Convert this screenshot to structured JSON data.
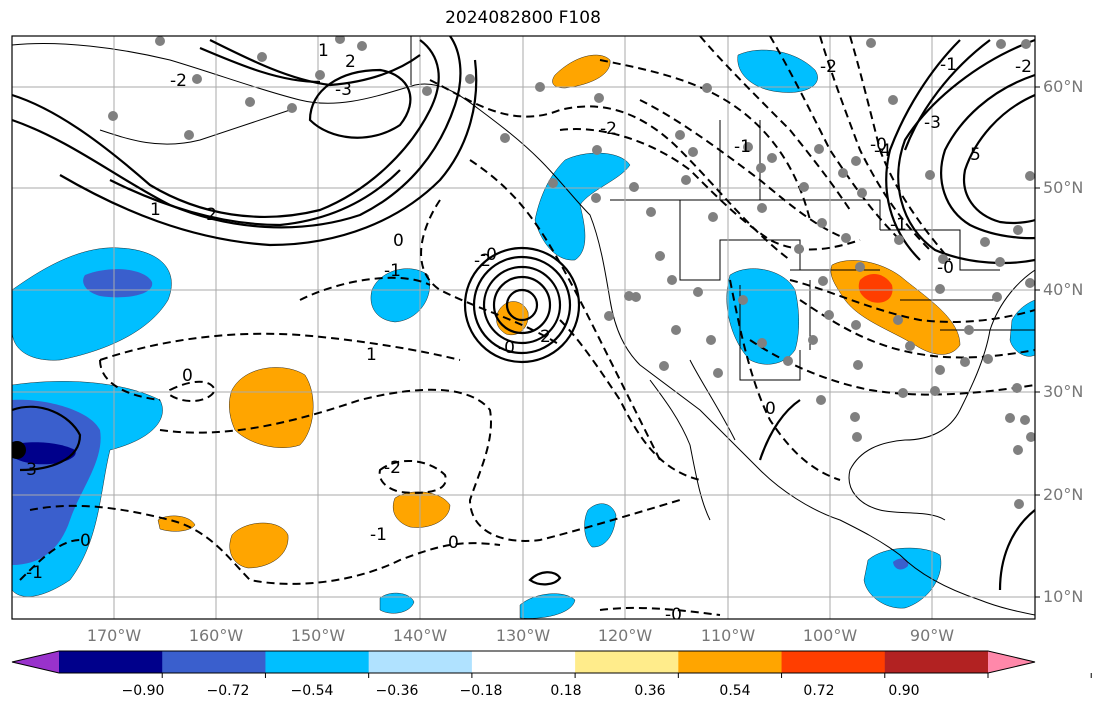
{
  "title": "2024082800 F108",
  "lat_labels": [
    "60°N",
    "50°N",
    "40°N",
    "30°N",
    "20°N",
    "10°N"
  ],
  "lon_labels": [
    "170°W",
    "160°W",
    "150°W",
    "140°W",
    "130°W",
    "120°W",
    "110°W",
    "100°W",
    "90°W"
  ],
  "contour_labels": [
    "1",
    "2",
    "1",
    "-2",
    "-3",
    "-2",
    "-1",
    "-2",
    "-3",
    "-4",
    "0",
    "-1",
    "-2",
    "-0",
    "2",
    "1",
    "0",
    "-3",
    "-2",
    "5",
    "-0",
    "0",
    "-1",
    "0",
    "-1",
    "-2",
    "-1",
    "-0",
    "0",
    "-2",
    "-1",
    "-0",
    "-0"
  ],
  "colorbar": {
    "ticks": [
      "−0.90",
      "−0.72",
      "−0.54",
      "−0.36",
      "−0.18",
      "0.18",
      "0.36",
      "0.54",
      "0.72",
      "0.90"
    ],
    "colors": [
      "#9932cc",
      "#00008b",
      "#3a5fcd",
      "#00bfff",
      "#b0e2ff",
      "#ffffff",
      "#ffec8b",
      "#ffa500",
      "#ff3e00",
      "#b22222",
      "#ff88aa"
    ]
  }
}
